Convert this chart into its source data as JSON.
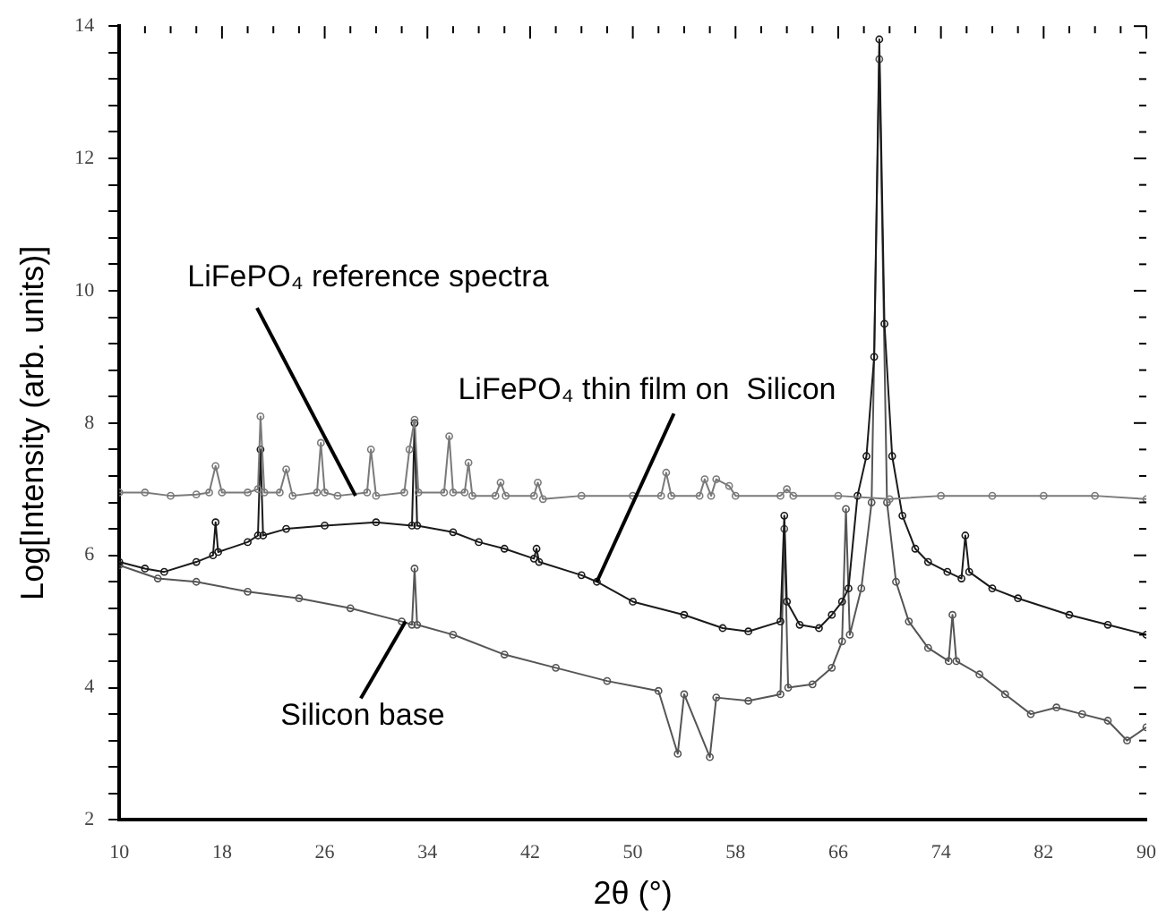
{
  "chart_data": {
    "type": "line",
    "xlabel": "2θ (°)",
    "ylabel": "Log[Intensity (arb. units)]",
    "marker": "circle",
    "grid": false,
    "legend": false,
    "xlim": [
      10,
      90
    ],
    "ylim": [
      2,
      14
    ],
    "xticks": [
      10,
      {
        "value": 12,
        "label": null
      },
      {
        "value": 14,
        "label": null
      },
      {
        "value": 16,
        "label": null
      },
      18,
      {
        "value": 20,
        "label": null
      },
      {
        "value": 22,
        "label": null
      },
      {
        "value": 24,
        "label": null
      },
      26,
      {
        "value": 28,
        "label": null
      },
      {
        "value": 30,
        "label": null
      },
      {
        "value": 32,
        "label": null
      },
      34,
      {
        "value": 36,
        "label": null
      },
      {
        "value": 38,
        "label": null
      },
      {
        "value": 40,
        "label": null
      },
      42,
      {
        "value": 44,
        "label": null
      },
      {
        "value": 46,
        "label": null
      },
      {
        "value": 48,
        "label": null
      },
      50,
      {
        "value": 52,
        "label": null
      },
      {
        "value": 54,
        "label": null
      },
      {
        "value": 56,
        "label": null
      },
      58,
      {
        "value": 60,
        "label": null
      },
      {
        "value": 62,
        "label": null
      },
      {
        "value": 64,
        "label": null
      },
      66,
      {
        "value": 68,
        "label": null
      },
      {
        "value": 70,
        "label": null
      },
      {
        "value": 72,
        "label": null
      },
      74,
      {
        "value": 76,
        "label": null
      },
      {
        "value": 78,
        "label": null
      },
      {
        "value": 80,
        "label": null
      },
      82,
      {
        "value": 84,
        "label": null
      },
      {
        "value": 86,
        "label": null
      },
      {
        "value": 88,
        "label": null
      },
      90
    ],
    "yticks": [
      2,
      {
        "value": 2.4,
        "label": null
      },
      {
        "value": 2.8,
        "label": null
      },
      {
        "value": 3.2,
        "label": null
      },
      {
        "value": 3.6,
        "label": null
      },
      4,
      {
        "value": 4.4,
        "label": null
      },
      {
        "value": 4.8,
        "label": null
      },
      {
        "value": 5.2,
        "label": null
      },
      {
        "value": 5.6,
        "label": null
      },
      6,
      {
        "value": 6.4,
        "label": null
      },
      {
        "value": 6.8,
        "label": null
      },
      {
        "value": 7.2,
        "label": null
      },
      {
        "value": 7.6,
        "label": null
      },
      8,
      {
        "value": 8.4,
        "label": null
      },
      {
        "value": 8.8,
        "label": null
      },
      {
        "value": 9.2,
        "label": null
      },
      {
        "value": 9.6,
        "label": null
      },
      10,
      {
        "value": 10.4,
        "label": null
      },
      {
        "value": 10.8,
        "label": null
      },
      {
        "value": 11.2,
        "label": null
      },
      {
        "value": 11.6,
        "label": null
      },
      12,
      {
        "value": 12.4,
        "label": null
      },
      {
        "value": 12.8,
        "label": null
      },
      {
        "value": 13.2,
        "label": null
      },
      {
        "value": 13.6,
        "label": null
      },
      14
    ],
    "series": [
      {
        "color": "#7a7a7a",
        "x": [
          10,
          12,
          14,
          16,
          17,
          17.5,
          18,
          20,
          20.8,
          21,
          21.3,
          22.5,
          23,
          23.5,
          25.4,
          25.7,
          26,
          27,
          29.3,
          29.6,
          30,
          32.2,
          32.6,
          33,
          33.3,
          35.3,
          35.7,
          36,
          36.9,
          37.2,
          37.5,
          39.3,
          39.7,
          40.1,
          42.3,
          42.6,
          43,
          46,
          50,
          52.2,
          52.6,
          53,
          55.2,
          55.6,
          56.1,
          56.5,
          57.5,
          58,
          61.5,
          62,
          62.5,
          66,
          70,
          74,
          78,
          82,
          86,
          90
        ],
        "values": [
          6.95,
          6.95,
          6.9,
          6.92,
          6.95,
          7.35,
          6.95,
          6.95,
          7.0,
          8.1,
          6.95,
          6.95,
          7.3,
          6.9,
          6.95,
          7.7,
          6.95,
          6.9,
          6.95,
          7.6,
          6.9,
          6.95,
          7.6,
          8.05,
          6.95,
          6.95,
          7.8,
          6.95,
          6.95,
          7.4,
          6.9,
          6.9,
          7.1,
          6.9,
          6.9,
          7.1,
          6.85,
          6.9,
          6.9,
          6.9,
          7.25,
          6.9,
          6.9,
          7.15,
          6.9,
          7.15,
          7.05,
          6.9,
          6.9,
          7.0,
          6.9,
          6.9,
          6.85,
          6.9,
          6.9,
          6.9,
          6.9,
          6.85
        ]
      },
      {
        "color": "#1a1a1a",
        "x": [
          10,
          12,
          13.5,
          16,
          17.3,
          17.5,
          17.7,
          20,
          20.8,
          21,
          21.2,
          23,
          26,
          30,
          32.8,
          33,
          33.2,
          36,
          38,
          40,
          42.3,
          42.5,
          42.7,
          46,
          47.2,
          50,
          54,
          57,
          59,
          61.5,
          61.8,
          62,
          63,
          64.5,
          65.5,
          66.3,
          66.8,
          67.5,
          68.2,
          68.8,
          69.2,
          69.6,
          70.2,
          71,
          72,
          73,
          74.5,
          75.6,
          75.9,
          76.2,
          78,
          80,
          84,
          87,
          90
        ],
        "values": [
          5.9,
          5.8,
          5.75,
          5.9,
          6.0,
          6.5,
          6.05,
          6.2,
          6.3,
          7.6,
          6.3,
          6.4,
          6.45,
          6.5,
          6.45,
          8.0,
          6.45,
          6.35,
          6.2,
          6.1,
          5.95,
          6.1,
          5.9,
          5.7,
          5.6,
          5.3,
          5.1,
          4.9,
          4.85,
          5.0,
          6.6,
          5.3,
          4.95,
          4.9,
          5.1,
          5.3,
          5.5,
          6.9,
          7.5,
          9.0,
          13.8,
          9.5,
          7.5,
          6.6,
          6.1,
          5.9,
          5.75,
          5.65,
          6.3,
          5.75,
          5.5,
          5.35,
          5.1,
          4.95,
          4.8
        ]
      },
      {
        "color": "#555555",
        "x": [
          10,
          13,
          16,
          20,
          24,
          28,
          32,
          32.8,
          33,
          33.2,
          36,
          40,
          44,
          48,
          52,
          53.5,
          54,
          56,
          56.5,
          59,
          61.5,
          61.8,
          62.1,
          64,
          65.5,
          66.3,
          66.6,
          66.9,
          67.8,
          68.6,
          69.2,
          69.8,
          70.5,
          71.5,
          73,
          74.6,
          74.9,
          75.2,
          77,
          79,
          81,
          83,
          85,
          87,
          88.5,
          90
        ],
        "values": [
          5.85,
          5.65,
          5.6,
          5.45,
          5.35,
          5.2,
          5.0,
          4.95,
          5.8,
          4.95,
          4.8,
          4.5,
          4.3,
          4.1,
          3.95,
          3.0,
          3.9,
          2.95,
          3.85,
          3.8,
          3.9,
          6.4,
          4.0,
          4.05,
          4.3,
          4.7,
          6.7,
          4.8,
          5.5,
          6.8,
          13.5,
          6.8,
          5.6,
          5.0,
          4.6,
          4.4,
          5.1,
          4.4,
          4.2,
          3.9,
          3.6,
          3.7,
          3.6,
          3.5,
          3.2,
          3.4
        ]
      }
    ],
    "annotations": [
      {
        "text": "LiFePO₄ reference spectra",
        "x": 28.4,
        "y": 6.9
      },
      {
        "text": "LiFePO₄ thin film on  Silicon",
        "x": 47.2,
        "y": 5.6
      },
      {
        "text": "Silicon base",
        "x": 32.3,
        "y": 5.0
      }
    ]
  }
}
